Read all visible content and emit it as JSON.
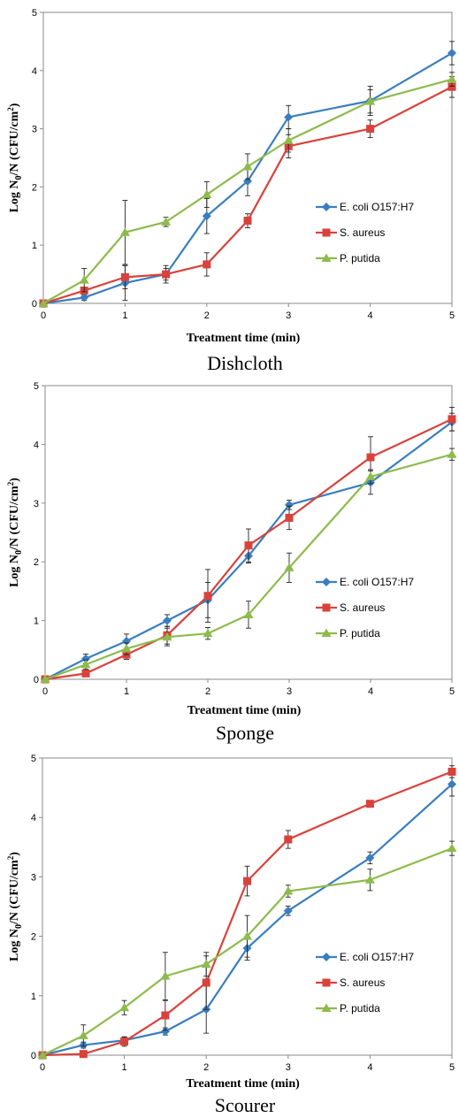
{
  "chart_data": [
    {
      "type": "line",
      "caption": "Dishcloth",
      "xlabel": "Treatment time (min)",
      "ylabel_main": "Log N",
      "ylabel_sub": "0",
      "ylabel_rest": "/N (CFU/cm",
      "ylabel_sup": "2",
      "ylabel_end": ")",
      "xlim": [
        0,
        5
      ],
      "ylim": [
        0,
        5
      ],
      "xticks": [
        0,
        1,
        2,
        3,
        4,
        5
      ],
      "yticks": [
        0,
        1,
        2,
        3,
        4,
        5
      ],
      "x": [
        0,
        0.5,
        1,
        1.5,
        2,
        2.5,
        3,
        4,
        5
      ],
      "legend_position": "lower-right",
      "grid": false,
      "series": [
        {
          "name": "E. coli O157:H7",
          "color": "#3a7ebf",
          "marker": "diamond",
          "values": [
            0,
            0.1,
            0.35,
            0.5,
            1.5,
            2.1,
            3.2,
            3.48,
            4.3
          ],
          "errors": [
            0.02,
            0.05,
            0.3,
            0.15,
            0.3,
            0.25,
            0.2,
            0.25,
            0.2
          ]
        },
        {
          "name": "S. aureus",
          "color": "#d9423b",
          "marker": "square",
          "values": [
            0,
            0.22,
            0.45,
            0.5,
            0.67,
            1.42,
            2.7,
            3.0,
            3.72
          ],
          "errors": [
            0.02,
            0.05,
            0.2,
            0.1,
            0.2,
            0.12,
            0.2,
            0.15,
            0.18
          ]
        },
        {
          "name": "P. putida",
          "color": "#8dbb4c",
          "marker": "triangle",
          "values": [
            0,
            0.4,
            1.22,
            1.4,
            1.87,
            2.35,
            2.8,
            3.47,
            3.85
          ],
          "errors": [
            0.02,
            0.2,
            0.55,
            0.08,
            0.22,
            0.22,
            0.2,
            0.2,
            0.12
          ]
        }
      ]
    },
    {
      "type": "line",
      "caption": "Sponge",
      "xlabel": "Treatment time (min)",
      "ylabel_main": "Log N",
      "ylabel_sub": "0",
      "ylabel_rest": "/N (CFU/cm",
      "ylabel_sup": "2",
      "ylabel_end": ")",
      "xlim": [
        0,
        5
      ],
      "ylim": [
        0,
        5
      ],
      "xticks": [
        0,
        1,
        2,
        3,
        4,
        5
      ],
      "yticks": [
        0,
        1,
        2,
        3,
        4,
        5
      ],
      "x": [
        0,
        0.5,
        1,
        1.5,
        2,
        2.5,
        3,
        4,
        5
      ],
      "legend_position": "lower-right",
      "grid": false,
      "series": [
        {
          "name": "E. coli O157:H7",
          "color": "#3a7ebf",
          "marker": "diamond",
          "values": [
            0,
            0.35,
            0.65,
            1.0,
            1.35,
            2.1,
            2.97,
            3.35,
            4.38
          ],
          "errors": [
            0.02,
            0.08,
            0.12,
            0.1,
            0.3,
            0.12,
            0.08,
            0.2,
            0.15
          ]
        },
        {
          "name": "S. aureus",
          "color": "#d9423b",
          "marker": "square",
          "values": [
            0,
            0.1,
            0.42,
            0.75,
            1.42,
            2.28,
            2.75,
            3.78,
            4.43
          ],
          "errors": [
            0.02,
            0.05,
            0.08,
            0.15,
            0.45,
            0.28,
            0.2,
            0.35,
            0.2
          ]
        },
        {
          "name": "P. putida",
          "color": "#8dbb4c",
          "marker": "triangle",
          "values": [
            0,
            0.25,
            0.52,
            0.72,
            0.78,
            1.1,
            1.9,
            3.45,
            3.83
          ],
          "errors": [
            0.02,
            0.08,
            0.1,
            0.15,
            0.1,
            0.23,
            0.25,
            0.12,
            0.1
          ]
        }
      ]
    },
    {
      "type": "line",
      "caption": "Scourer",
      "xlabel": "Treatment time (min)",
      "ylabel_main": "Log N",
      "ylabel_sub": "0",
      "ylabel_rest": "/N (CFU/cm",
      "ylabel_sup": "2",
      "ylabel_end": ")",
      "xlim": [
        0,
        5
      ],
      "ylim": [
        0,
        5
      ],
      "xticks": [
        0,
        1,
        2,
        3,
        4,
        5
      ],
      "yticks": [
        0,
        1,
        2,
        3,
        4,
        5
      ],
      "x": [
        0,
        0.5,
        1,
        1.5,
        2,
        2.5,
        3,
        4,
        5
      ],
      "legend_position": "lower-right",
      "grid": false,
      "series": [
        {
          "name": "E. coli O157:H7",
          "color": "#3a7ebf",
          "marker": "diamond",
          "values": [
            0,
            0.17,
            0.25,
            0.4,
            0.77,
            1.8,
            2.43,
            3.32,
            4.56
          ],
          "errors": [
            0.02,
            0.05,
            0.05,
            0.06,
            0.4,
            0.2,
            0.08,
            0.1,
            0.2
          ]
        },
        {
          "name": "S. aureus",
          "color": "#d9423b",
          "marker": "square",
          "values": [
            0,
            0.02,
            0.23,
            0.67,
            1.22,
            2.93,
            3.63,
            4.23,
            4.77
          ],
          "errors": [
            0.02,
            0.02,
            0.08,
            0.25,
            0.45,
            0.25,
            0.15,
            0.05,
            0.1
          ]
        },
        {
          "name": "P. putida",
          "color": "#8dbb4c",
          "marker": "triangle",
          "values": [
            0,
            0.33,
            0.8,
            1.33,
            1.53,
            2.0,
            2.76,
            2.95,
            3.48
          ],
          "errors": [
            0.02,
            0.18,
            0.12,
            0.4,
            0.2,
            0.35,
            0.1,
            0.18,
            0.12
          ]
        }
      ]
    }
  ]
}
